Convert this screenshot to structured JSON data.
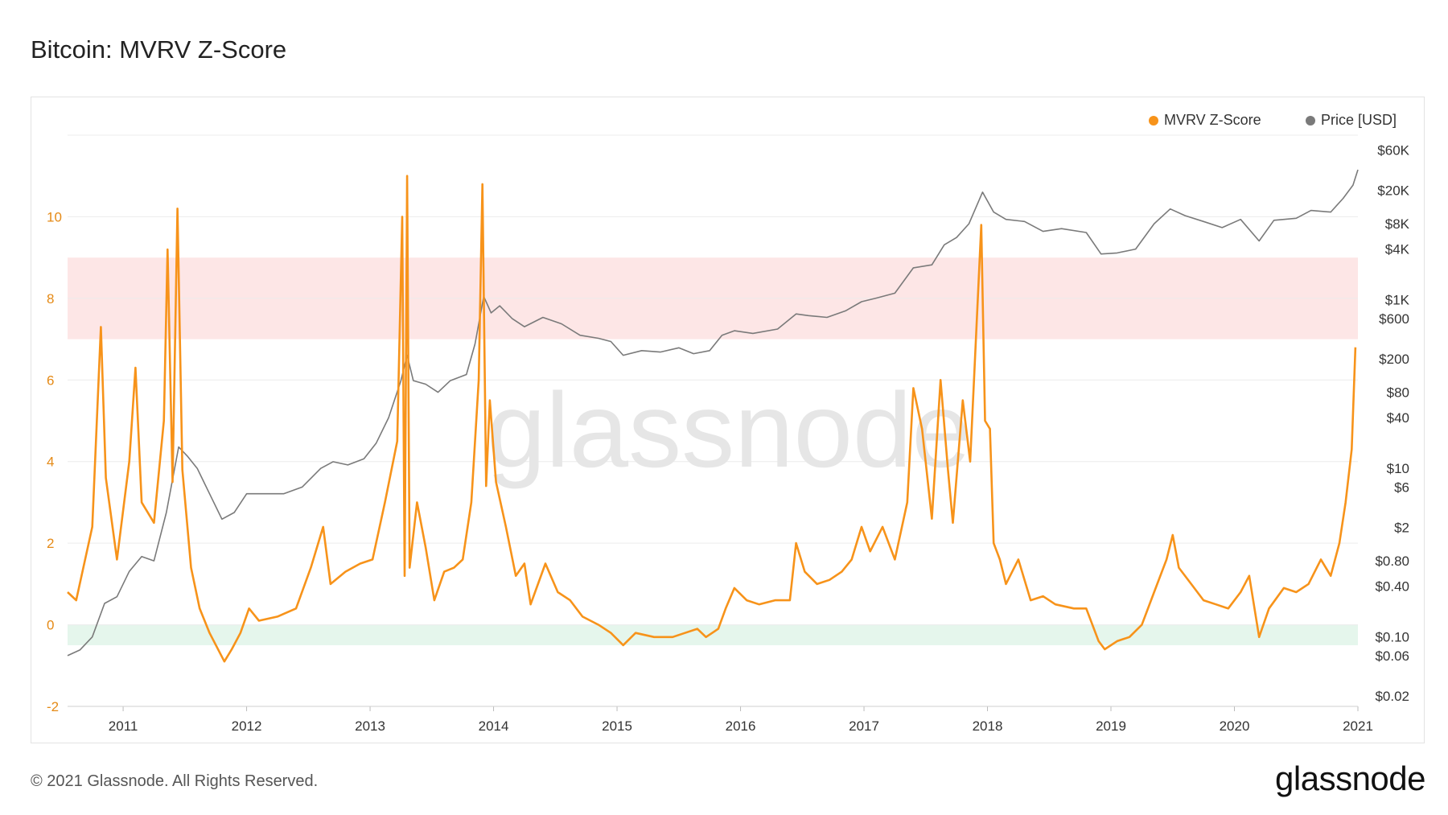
{
  "title": "Bitcoin: MVRV Z-Score",
  "footer": {
    "copyright": "© 2021 Glassnode. All Rights Reserved.",
    "logo": "glassnode"
  },
  "watermark": "glassnode",
  "colors": {
    "zscore": "#f7931a",
    "price": "#7a7a7a",
    "red_band": "#fde6e6",
    "green_band": "#e5f6ec",
    "left_axis": "#e58a16"
  },
  "chart_data": {
    "type": "line",
    "title": "Bitcoin: MVRV Z-Score",
    "legend": {
      "placement": "top-right",
      "entries": [
        "MVRV Z-Score",
        "Price [USD]"
      ]
    },
    "x_ticks": [
      "2011",
      "2012",
      "2013",
      "2014",
      "2015",
      "2016",
      "2017",
      "2018",
      "2019",
      "2020",
      "2021"
    ],
    "x_range": [
      2010.55,
      2021.0
    ],
    "y_left": {
      "range": [
        -2,
        12
      ],
      "ticks": [
        "-2",
        "0",
        "2",
        "4",
        "6",
        "8",
        "10"
      ]
    },
    "y_right": {
      "scale": "log",
      "range": [
        0.015,
        90000
      ],
      "ticks": [
        "$60K",
        "$20K",
        "$8K",
        "$4K",
        "$1K",
        "$600",
        "$200",
        "$80",
        "$40",
        "$10",
        "$6",
        "$2",
        "$0.80",
        "$0.40",
        "$0.10",
        "$0.06",
        "$0.02"
      ],
      "tick_values": [
        60000,
        20000,
        8000,
        4000,
        1000,
        600,
        200,
        80,
        40,
        10,
        6,
        2,
        0.8,
        0.4,
        0.1,
        0.06,
        0.02
      ]
    },
    "bands": [
      {
        "axis": "left",
        "from": 7,
        "to": 9,
        "color": "#fde6e6"
      },
      {
        "axis": "left",
        "from": -0.5,
        "to": 0,
        "color": "#e5f6ec"
      }
    ],
    "grid": "horizontal",
    "series": [
      {
        "name": "MVRV Z-Score",
        "axis": "left",
        "color": "#f7931a",
        "points": [
          [
            2010.55,
            0.8
          ],
          [
            2010.62,
            0.6
          ],
          [
            2010.75,
            2.4
          ],
          [
            2010.82,
            7.3
          ],
          [
            2010.86,
            3.6
          ],
          [
            2010.95,
            1.6
          ],
          [
            2011.05,
            4.0
          ],
          [
            2011.1,
            6.3
          ],
          [
            2011.15,
            3.0
          ],
          [
            2011.25,
            2.5
          ],
          [
            2011.33,
            5.0
          ],
          [
            2011.36,
            9.2
          ],
          [
            2011.4,
            3.5
          ],
          [
            2011.44,
            10.2
          ],
          [
            2011.48,
            3.8
          ],
          [
            2011.55,
            1.4
          ],
          [
            2011.62,
            0.4
          ],
          [
            2011.7,
            -0.2
          ],
          [
            2011.82,
            -0.9
          ],
          [
            2011.88,
            -0.6
          ],
          [
            2011.95,
            -0.2
          ],
          [
            2012.02,
            0.4
          ],
          [
            2012.1,
            0.1
          ],
          [
            2012.25,
            0.2
          ],
          [
            2012.4,
            0.4
          ],
          [
            2012.52,
            1.4
          ],
          [
            2012.62,
            2.4
          ],
          [
            2012.68,
            1.0
          ],
          [
            2012.8,
            1.3
          ],
          [
            2012.92,
            1.5
          ],
          [
            2013.02,
            1.6
          ],
          [
            2013.12,
            3.0
          ],
          [
            2013.22,
            4.5
          ],
          [
            2013.26,
            10.0
          ],
          [
            2013.28,
            1.2
          ],
          [
            2013.3,
            11.0
          ],
          [
            2013.32,
            1.4
          ],
          [
            2013.38,
            3.0
          ],
          [
            2013.45,
            1.9
          ],
          [
            2013.52,
            0.6
          ],
          [
            2013.6,
            1.3
          ],
          [
            2013.68,
            1.4
          ],
          [
            2013.75,
            1.6
          ],
          [
            2013.82,
            3.0
          ],
          [
            2013.88,
            6.0
          ],
          [
            2013.91,
            10.8
          ],
          [
            2013.94,
            3.4
          ],
          [
            2013.97,
            5.5
          ],
          [
            2014.02,
            3.5
          ],
          [
            2014.1,
            2.4
          ],
          [
            2014.18,
            1.2
          ],
          [
            2014.25,
            1.5
          ],
          [
            2014.3,
            0.5
          ],
          [
            2014.42,
            1.5
          ],
          [
            2014.52,
            0.8
          ],
          [
            2014.62,
            0.6
          ],
          [
            2014.72,
            0.2
          ],
          [
            2014.85,
            0.0
          ],
          [
            2014.95,
            -0.2
          ],
          [
            2015.05,
            -0.5
          ],
          [
            2015.15,
            -0.2
          ],
          [
            2015.3,
            -0.3
          ],
          [
            2015.45,
            -0.3
          ],
          [
            2015.55,
            -0.2
          ],
          [
            2015.65,
            -0.1
          ],
          [
            2015.72,
            -0.3
          ],
          [
            2015.82,
            -0.1
          ],
          [
            2015.88,
            0.4
          ],
          [
            2015.95,
            0.9
          ],
          [
            2016.05,
            0.6
          ],
          [
            2016.15,
            0.5
          ],
          [
            2016.28,
            0.6
          ],
          [
            2016.4,
            0.6
          ],
          [
            2016.45,
            2.0
          ],
          [
            2016.52,
            1.3
          ],
          [
            2016.62,
            1.0
          ],
          [
            2016.72,
            1.1
          ],
          [
            2016.82,
            1.3
          ],
          [
            2016.9,
            1.6
          ],
          [
            2016.98,
            2.4
          ],
          [
            2017.05,
            1.8
          ],
          [
            2017.15,
            2.4
          ],
          [
            2017.25,
            1.6
          ],
          [
            2017.35,
            3.0
          ],
          [
            2017.4,
            5.8
          ],
          [
            2017.47,
            4.8
          ],
          [
            2017.55,
            2.6
          ],
          [
            2017.62,
            6.0
          ],
          [
            2017.68,
            3.8
          ],
          [
            2017.72,
            2.5
          ],
          [
            2017.8,
            5.5
          ],
          [
            2017.86,
            4.0
          ],
          [
            2017.9,
            6.6
          ],
          [
            2017.95,
            9.8
          ],
          [
            2017.98,
            5.0
          ],
          [
            2018.02,
            4.8
          ],
          [
            2018.05,
            2.0
          ],
          [
            2018.1,
            1.6
          ],
          [
            2018.15,
            1.0
          ],
          [
            2018.25,
            1.6
          ],
          [
            2018.35,
            0.6
          ],
          [
            2018.45,
            0.7
          ],
          [
            2018.55,
            0.5
          ],
          [
            2018.7,
            0.4
          ],
          [
            2018.8,
            0.4
          ],
          [
            2018.9,
            -0.4
          ],
          [
            2018.95,
            -0.6
          ],
          [
            2019.05,
            -0.4
          ],
          [
            2019.15,
            -0.3
          ],
          [
            2019.25,
            0.0
          ],
          [
            2019.35,
            0.8
          ],
          [
            2019.45,
            1.6
          ],
          [
            2019.5,
            2.2
          ],
          [
            2019.55,
            1.4
          ],
          [
            2019.65,
            1.0
          ],
          [
            2019.75,
            0.6
          ],
          [
            2019.85,
            0.5
          ],
          [
            2019.95,
            0.4
          ],
          [
            2020.05,
            0.8
          ],
          [
            2020.12,
            1.2
          ],
          [
            2020.2,
            -0.3
          ],
          [
            2020.28,
            0.4
          ],
          [
            2020.4,
            0.9
          ],
          [
            2020.5,
            0.8
          ],
          [
            2020.6,
            1.0
          ],
          [
            2020.7,
            1.6
          ],
          [
            2020.78,
            1.2
          ],
          [
            2020.85,
            2.0
          ],
          [
            2020.9,
            3.0
          ],
          [
            2020.95,
            4.3
          ],
          [
            2020.98,
            6.8
          ]
        ]
      },
      {
        "name": "Price [USD]",
        "axis": "right",
        "color": "#7a7a7a",
        "points": [
          [
            2010.55,
            0.06
          ],
          [
            2010.65,
            0.07
          ],
          [
            2010.75,
            0.1
          ],
          [
            2010.85,
            0.25
          ],
          [
            2010.95,
            0.3
          ],
          [
            2011.05,
            0.6
          ],
          [
            2011.15,
            0.9
          ],
          [
            2011.25,
            0.8
          ],
          [
            2011.35,
            3.0
          ],
          [
            2011.45,
            18
          ],
          [
            2011.52,
            14
          ],
          [
            2011.6,
            10
          ],
          [
            2011.7,
            5
          ],
          [
            2011.8,
            2.5
          ],
          [
            2011.9,
            3
          ],
          [
            2012.0,
            5
          ],
          [
            2012.15,
            5
          ],
          [
            2012.3,
            5
          ],
          [
            2012.45,
            6
          ],
          [
            2012.6,
            10
          ],
          [
            2012.7,
            12
          ],
          [
            2012.82,
            11
          ],
          [
            2012.95,
            13
          ],
          [
            2013.05,
            20
          ],
          [
            2013.15,
            40
          ],
          [
            2013.25,
            110
          ],
          [
            2013.3,
            220
          ],
          [
            2013.35,
            110
          ],
          [
            2013.45,
            100
          ],
          [
            2013.55,
            80
          ],
          [
            2013.65,
            110
          ],
          [
            2013.78,
            130
          ],
          [
            2013.85,
            300
          ],
          [
            2013.92,
            1100
          ],
          [
            2013.98,
            700
          ],
          [
            2014.05,
            850
          ],
          [
            2014.15,
            600
          ],
          [
            2014.25,
            480
          ],
          [
            2014.4,
            620
          ],
          [
            2014.55,
            520
          ],
          [
            2014.7,
            380
          ],
          [
            2014.85,
            350
          ],
          [
            2014.95,
            320
          ],
          [
            2015.05,
            220
          ],
          [
            2015.2,
            250
          ],
          [
            2015.35,
            240
          ],
          [
            2015.5,
            270
          ],
          [
            2015.62,
            230
          ],
          [
            2015.75,
            250
          ],
          [
            2015.85,
            380
          ],
          [
            2015.95,
            430
          ],
          [
            2016.1,
            400
          ],
          [
            2016.3,
            450
          ],
          [
            2016.45,
            680
          ],
          [
            2016.55,
            650
          ],
          [
            2016.7,
            620
          ],
          [
            2016.85,
            740
          ],
          [
            2016.98,
            950
          ],
          [
            2017.1,
            1050
          ],
          [
            2017.25,
            1200
          ],
          [
            2017.4,
            2400
          ],
          [
            2017.55,
            2600
          ],
          [
            2017.65,
            4500
          ],
          [
            2017.75,
            5500
          ],
          [
            2017.85,
            8000
          ],
          [
            2017.96,
            19000
          ],
          [
            2018.05,
            11000
          ],
          [
            2018.15,
            9000
          ],
          [
            2018.3,
            8500
          ],
          [
            2018.45,
            6500
          ],
          [
            2018.6,
            7000
          ],
          [
            2018.8,
            6300
          ],
          [
            2018.92,
            3500
          ],
          [
            2019.05,
            3600
          ],
          [
            2019.2,
            4000
          ],
          [
            2019.35,
            8000
          ],
          [
            2019.48,
            12000
          ],
          [
            2019.6,
            10000
          ],
          [
            2019.75,
            8500
          ],
          [
            2019.9,
            7200
          ],
          [
            2020.05,
            9000
          ],
          [
            2020.2,
            5000
          ],
          [
            2020.32,
            8800
          ],
          [
            2020.5,
            9300
          ],
          [
            2020.62,
            11500
          ],
          [
            2020.78,
            11000
          ],
          [
            2020.88,
            16000
          ],
          [
            2020.96,
            23000
          ],
          [
            2021.0,
            35000
          ]
        ]
      }
    ]
  }
}
